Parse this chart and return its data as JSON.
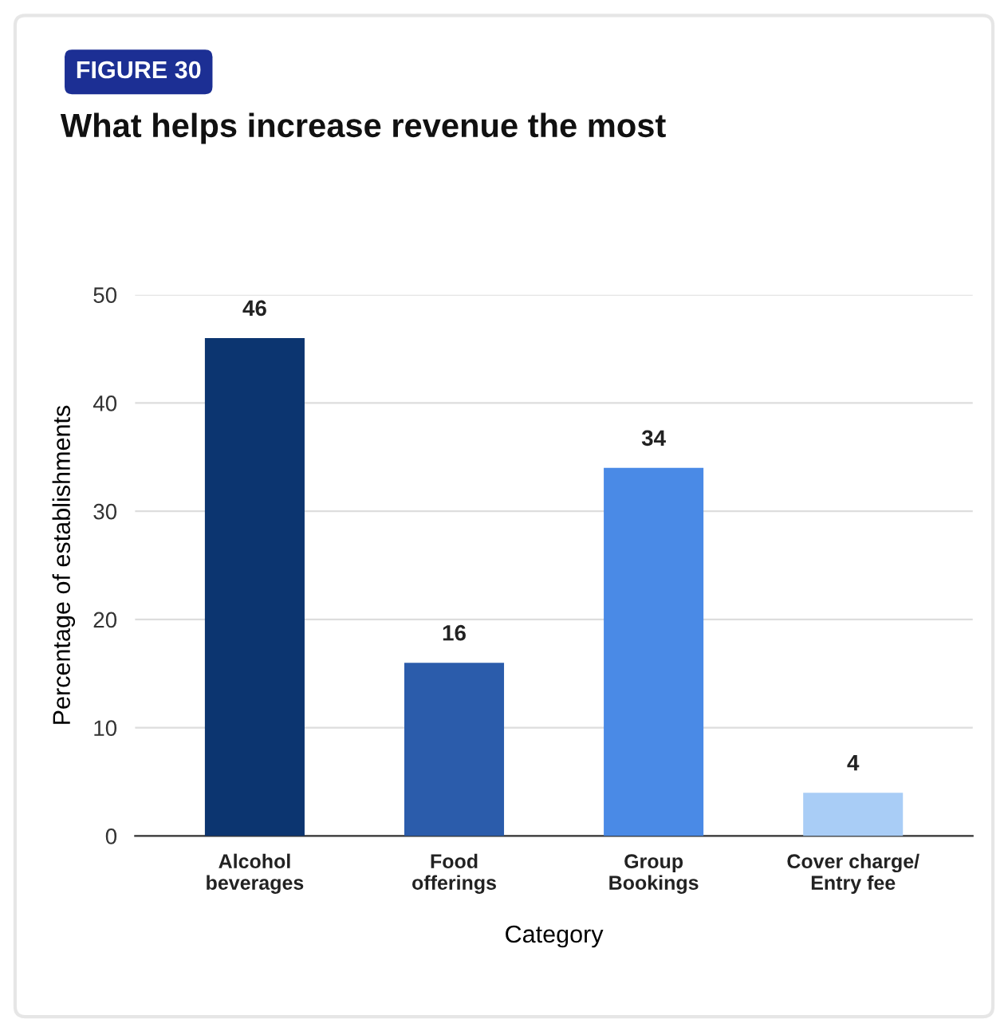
{
  "chart_data": {
    "type": "bar",
    "title": "What helps increase revenue the most",
    "annotations": [
      "FIGURE 30"
    ],
    "categories": [
      "Alcohol\nbeverages",
      "Food\nofferings",
      "Group\nBookings",
      "Cover charge/\nEntry fee"
    ],
    "values": [
      46,
      16,
      34,
      4
    ],
    "colors": [
      "#0c3570",
      "#2b5cab",
      "#4a8ae6",
      "#a9cdf6"
    ],
    "xlabel": "Category",
    "ylabel": "Percentage of establishments",
    "ylim": [
      0,
      50
    ],
    "yticks": [
      0,
      10,
      20,
      30,
      40,
      50
    ],
    "grid": "y",
    "data_labels": true,
    "legend": false
  }
}
